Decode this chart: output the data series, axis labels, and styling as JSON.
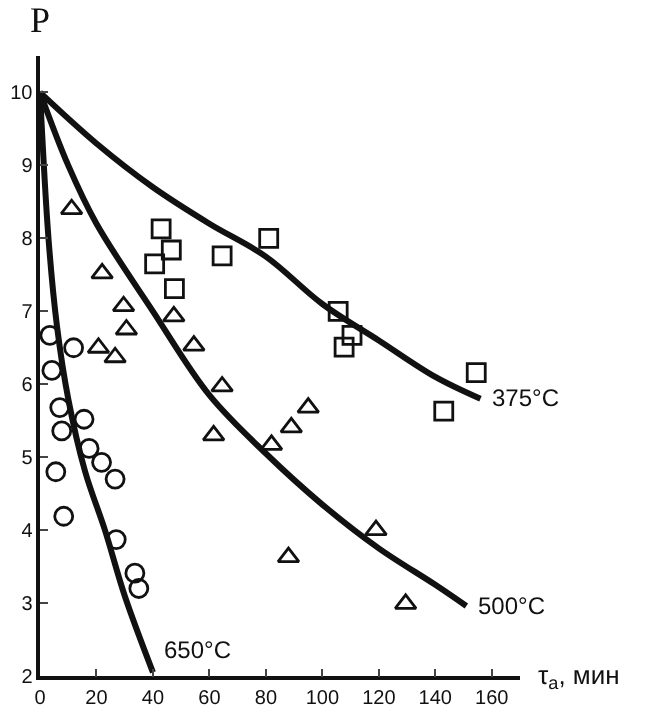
{
  "chart_data": {
    "type": "scatter",
    "xlabel": "τ$_{a}$, мин",
    "ylabel": "P",
    "xlim": [
      0,
      170
    ],
    "ylim": [
      2,
      10.5
    ],
    "xticks": [
      0,
      20,
      40,
      60,
      80,
      100,
      120,
      140,
      160
    ],
    "yticks": [
      2,
      3,
      4,
      5,
      6,
      7,
      8,
      9,
      10
    ],
    "grid": false,
    "series": [
      {
        "marker": "circle",
        "color": "#111111",
        "x": [
          3.5,
          4.2,
          11.9,
          7,
          7.7,
          15.6,
          17.4,
          21.8,
          26.6,
          5.6,
          8.4,
          27,
          33.6,
          35
        ],
        "values": [
          6.67,
          6.19,
          6.5,
          5.68,
          5.36,
          5.52,
          5.12,
          4.93,
          4.7,
          4.8,
          4.19,
          3.87,
          3.41,
          3.2
        ]
      },
      {
        "marker": "triangle",
        "color": "#111111",
        "x": [
          11.2,
          22,
          20.7,
          26.6,
          29.6,
          30.6,
          47.4,
          54.5,
          64.5,
          61.5,
          82,
          89,
          95,
          88,
          119,
          129.5
        ],
        "values": [
          8.4,
          7.52,
          6.5,
          6.37,
          7.07,
          6.75,
          6.93,
          6.53,
          5.97,
          5.3,
          5.17,
          5.41,
          5.68,
          3.63,
          4.0,
          2.99
        ]
      },
      {
        "marker": "square",
        "color": "#111111",
        "x": [
          42.9,
          46.5,
          40.6,
          47.6,
          64.5,
          81,
          105.6,
          110.5,
          107.7,
          154.5,
          143
        ],
        "values": [
          8.13,
          7.84,
          7.65,
          7.31,
          7.76,
          8.0,
          7.0,
          6.67,
          6.51,
          6.16,
          5.63
        ]
      },
      {
        "type": "line",
        "line_style": "solid",
        "color": "#111111",
        "x": [
          0,
          20,
          40,
          60,
          80,
          100,
          120,
          140,
          156
        ],
        "values": [
          10,
          9.3,
          8.7,
          8.2,
          7.75,
          7.1,
          6.6,
          6.1,
          5.8
        ]
      },
      {
        "type": "line",
        "line_style": "solid",
        "color": "#111111",
        "x": [
          0,
          10,
          20,
          40,
          60,
          80,
          100,
          120,
          140,
          151
        ],
        "values": [
          10,
          9.0,
          8.2,
          7.0,
          5.85,
          5.05,
          4.35,
          3.75,
          3.25,
          2.96
        ]
      },
      {
        "type": "line",
        "line_style": "solid",
        "color": "#111111",
        "x": [
          0,
          3,
          6,
          10,
          16,
          23,
          30,
          40
        ],
        "values": [
          10,
          8,
          6.8,
          5.8,
          4.8,
          4.0,
          3.1,
          2.05
        ]
      }
    ],
    "annotations": [
      {
        "text": "375°C",
        "x": 156,
        "y": 5.8
      },
      {
        "text": "500°C",
        "x": 151,
        "y": 2.96
      },
      {
        "text": "650°C",
        "x": 40,
        "y": 2.35
      }
    ]
  }
}
